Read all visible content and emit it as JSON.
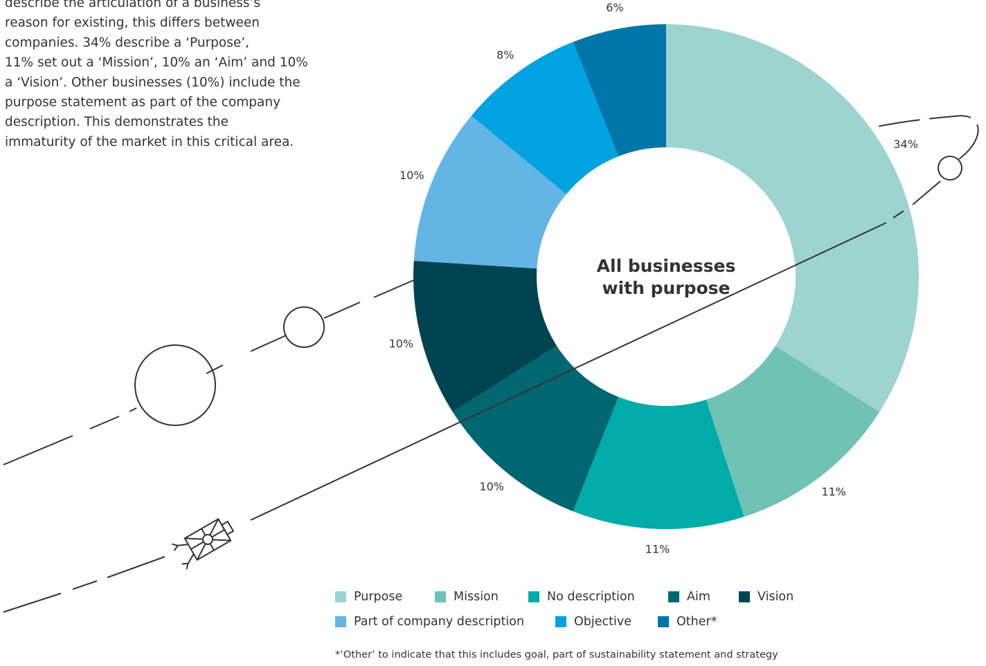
{
  "intro": [
    "describe the articulation of a business’s",
    "reason for existing, this differs between",
    "companies. 34% describe a ‘Purpose’,",
    "11% set out a ‘Mission’, 10% an ‘Aim’ and 10%",
    "a ‘Vision’. Other businesses (10%) include the",
    "purpose statement as part of the company",
    "description. This demonstrates the",
    "immaturity of the market in this critical area."
  ],
  "chart_data": {
    "type": "donut",
    "center_label": [
      "All businesses",
      "with purpose"
    ],
    "categories": [
      "Purpose",
      "Mission",
      "No description",
      "Aim",
      "Vision",
      "Part of company description",
      "Objective",
      "Other*"
    ],
    "values": [
      34,
      11,
      11,
      10,
      10,
      10,
      8,
      6
    ],
    "value_labels": [
      "34%",
      "11%",
      "11%",
      "10%",
      "10%",
      "10%",
      "8%",
      "6%"
    ],
    "colors": [
      "#9dd4cf",
      "#6fc2b4",
      "#00aba9",
      "#00666f",
      "#004451",
      "#62b5e5",
      "#00a3e0",
      "#0076a8"
    ],
    "note": "*‘Other’ to indicate that this includes goal, part of sustainability statement and strategy"
  }
}
